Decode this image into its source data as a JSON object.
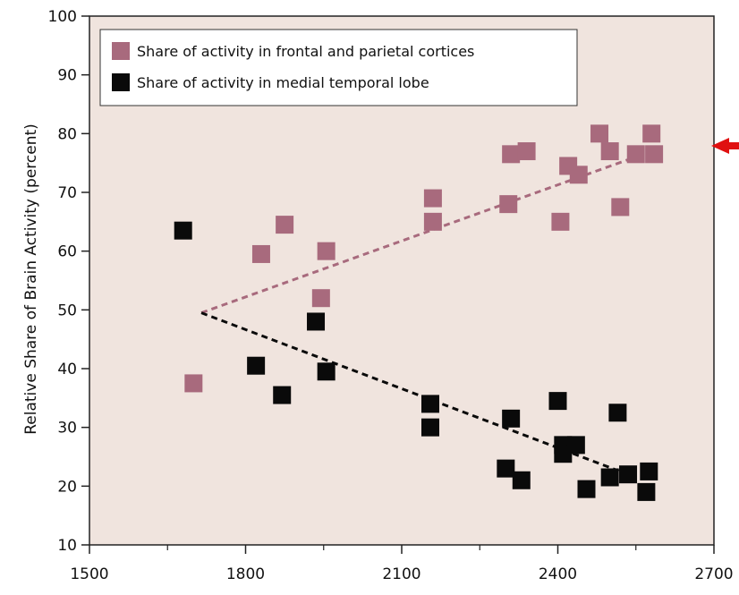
{
  "chart_data": {
    "type": "scatter",
    "title": "",
    "xlabel": "",
    "ylabel": "Relative Share of Brain Activity (percent)",
    "xlim": [
      1500,
      2700
    ],
    "ylim": [
      10,
      100
    ],
    "x_ticks": [
      "1500",
      "1800",
      "2100",
      "2400",
      "2700"
    ],
    "y_ticks": [
      "10",
      "20",
      "30",
      "40",
      "50",
      "60",
      "70",
      "80",
      "90",
      "100"
    ],
    "grid": false,
    "legend_position": "top-left",
    "background_color": "#f0e4de",
    "annotation": "red arrow pointing at ~77% on the right edge",
    "series": [
      {
        "name": "Share of activity in frontal and parietal cortices",
        "color": "#a86a7d",
        "points": [
          [
            1700,
            37.5
          ],
          [
            1830,
            59.5
          ],
          [
            1875,
            64.5
          ],
          [
            1945,
            52
          ],
          [
            1955,
            60
          ],
          [
            2160,
            69
          ],
          [
            2160,
            65
          ],
          [
            2305,
            68
          ],
          [
            2310,
            76.5
          ],
          [
            2340,
            77
          ],
          [
            2405,
            65
          ],
          [
            2420,
            74.5
          ],
          [
            2440,
            73
          ],
          [
            2480,
            80
          ],
          [
            2500,
            77
          ],
          [
            2520,
            67.5
          ],
          [
            2550,
            76.5
          ],
          [
            2580,
            80
          ],
          [
            2585,
            76.5
          ]
        ],
        "trend": [
          [
            1715,
            49.5
          ],
          [
            2580,
            77
          ]
        ]
      },
      {
        "name": "Share of activity in medial temporal lobe",
        "color": "#0a0a0a",
        "points": [
          [
            1680,
            63.5
          ],
          [
            1820,
            40.5
          ],
          [
            1870,
            35.5
          ],
          [
            1935,
            48
          ],
          [
            1955,
            39.5
          ],
          [
            2155,
            34
          ],
          [
            2155,
            30
          ],
          [
            2300,
            23
          ],
          [
            2310,
            31.5
          ],
          [
            2330,
            21
          ],
          [
            2400,
            34.5
          ],
          [
            2410,
            27
          ],
          [
            2410,
            25.5
          ],
          [
            2435,
            27
          ],
          [
            2455,
            19.5
          ],
          [
            2500,
            21.5
          ],
          [
            2515,
            32.5
          ],
          [
            2535,
            22
          ],
          [
            2570,
            19
          ],
          [
            2575,
            22.5
          ]
        ],
        "trend": [
          [
            1715,
            49.5
          ],
          [
            2520,
            22.5
          ]
        ]
      }
    ]
  }
}
